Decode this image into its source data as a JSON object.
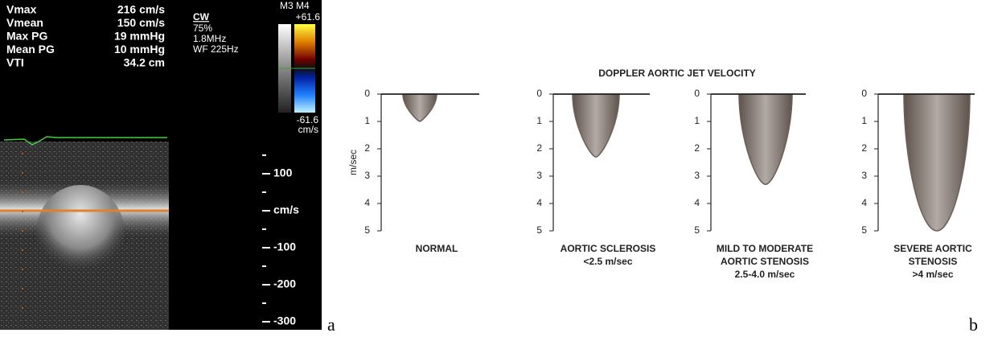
{
  "left": {
    "measurements": [
      {
        "label": "Vmax",
        "value": "216 cm/s"
      },
      {
        "label": "Vmean",
        "value": "150 cm/s"
      },
      {
        "label": "Max PG",
        "value": "19 mmHg"
      },
      {
        "label": "Mean PG",
        "value": "10 mmHg"
      },
      {
        "label": "VTI",
        "value": "34.2 cm"
      }
    ],
    "settings": [
      "CW",
      "75%",
      "1.8MHz",
      "WF 225Hz"
    ],
    "colorbar": {
      "mode": "M3 M4",
      "max": "+61.6",
      "min": "-61.6",
      "unit": "cm/s"
    },
    "scale": [
      "100",
      "cm/s",
      "-100",
      "-200",
      "-300"
    ]
  },
  "right": {
    "title": "DOPPLER AORTIC JET VELOCITY",
    "axis_label": "m/sec",
    "ticks": [
      0,
      1,
      2,
      3,
      4,
      5
    ],
    "panels": [
      {
        "caption": [
          "NORMAL"
        ],
        "peak": 1
      },
      {
        "caption": [
          "AORTIC SCLEROSIS",
          "<2.5 m/sec"
        ],
        "peak": 2.3
      },
      {
        "caption": [
          "MILD TO MODERATE",
          "AORTIC STENOSIS",
          "2.5-4.0 m/sec"
        ],
        "peak": 3.3
      },
      {
        "caption": [
          "SEVERE AORTIC",
          "STENOSIS",
          ">4 m/sec"
        ],
        "peak": 5
      }
    ]
  },
  "panel_letters": [
    "a",
    "b"
  ]
}
